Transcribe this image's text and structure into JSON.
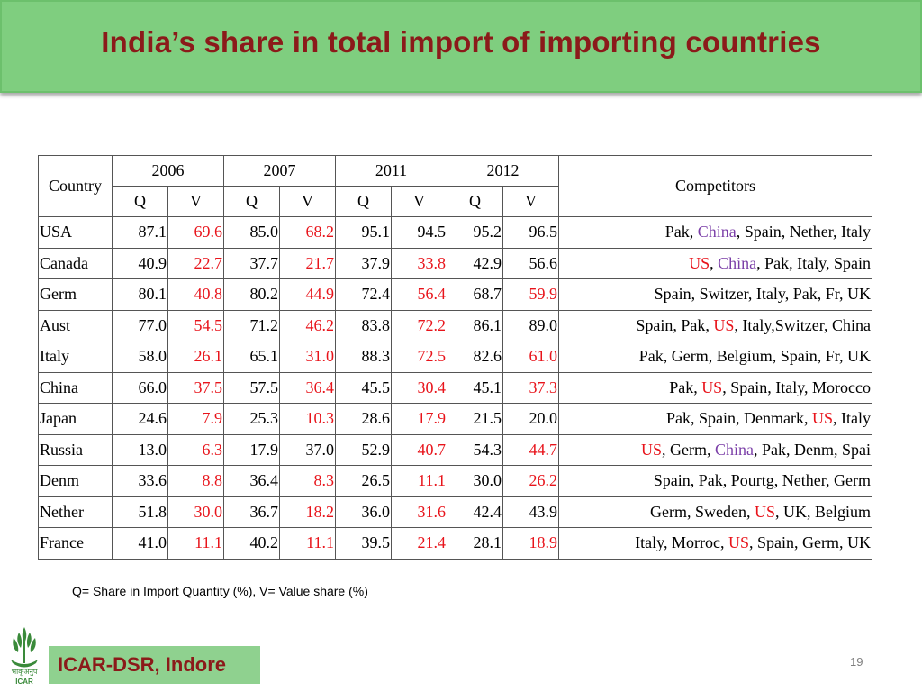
{
  "title": "India’s share in total import of importing countries",
  "table": {
    "country_header": "Country",
    "years": [
      "2006",
      "2007",
      "2011",
      "2012"
    ],
    "sub_headers": [
      "Q",
      "V"
    ],
    "competitors_header": "Competitors",
    "rows": [
      {
        "country": "USA",
        "values": [
          "87.1",
          "69.6",
          "85.0",
          "68.2",
          "95.1",
          "94.5",
          "95.2",
          "96.5"
        ],
        "red": [
          1,
          3
        ],
        "competitors": [
          {
            "t": "Pak, ",
            "c": ""
          },
          {
            "t": "China",
            "c": "purple"
          },
          {
            "t": ", Spain, Nether, Italy",
            "c": ""
          }
        ]
      },
      {
        "country": "Canada",
        "values": [
          "40.9",
          "22.7",
          "37.7",
          "21.7",
          "37.9",
          "33.8",
          "42.9",
          "56.6"
        ],
        "red": [
          1,
          3,
          5
        ],
        "competitors": [
          {
            "t": "US",
            "c": "red"
          },
          {
            "t": ", ",
            "c": ""
          },
          {
            "t": "China",
            "c": "purple"
          },
          {
            "t": ", Pak, Italy, Spain",
            "c": ""
          }
        ]
      },
      {
        "country": "Germ",
        "values": [
          "80.1",
          "40.8",
          "80.2",
          "44.9",
          "72.4",
          "56.4",
          "68.7",
          "59.9"
        ],
        "red": [
          1,
          3,
          5,
          7
        ],
        "competitors": [
          {
            "t": "Spain, Switzer, Italy, Pak, Fr, UK",
            "c": ""
          }
        ]
      },
      {
        "country": "Aust",
        "values": [
          "77.0",
          "54.5",
          "71.2",
          "46.2",
          "83.8",
          "72.2",
          "86.1",
          "89.0"
        ],
        "red": [
          1,
          3,
          5
        ],
        "competitors": [
          {
            "t": "Spain, Pak, ",
            "c": ""
          },
          {
            "t": "US",
            "c": "red"
          },
          {
            "t": ", Italy,Switzer, China",
            "c": ""
          }
        ]
      },
      {
        "country": "Italy",
        "values": [
          "58.0",
          "26.1",
          "65.1",
          "31.0",
          "88.3",
          "72.5",
          "82.6",
          "61.0"
        ],
        "red": [
          1,
          3,
          5,
          7
        ],
        "competitors": [
          {
            "t": "Pak, Germ, Belgium, Spain, Fr, UK",
            "c": ""
          }
        ]
      },
      {
        "country": "China",
        "values": [
          "66.0",
          "37.5",
          "57.5",
          "36.4",
          "45.5",
          "30.4",
          "45.1",
          "37.3"
        ],
        "red": [
          1,
          3,
          5,
          7
        ],
        "competitors": [
          {
            "t": "Pak, ",
            "c": ""
          },
          {
            "t": "US",
            "c": "red"
          },
          {
            "t": ", Spain, Italy, Morocco",
            "c": ""
          }
        ]
      },
      {
        "country": "Japan",
        "values": [
          "24.6",
          "7.9",
          "25.3",
          "10.3",
          "28.6",
          "17.9",
          "21.5",
          "20.0"
        ],
        "red": [
          1,
          3,
          5
        ],
        "competitors": [
          {
            "t": "Pak, Spain, Denmark, ",
            "c": ""
          },
          {
            "t": "US",
            "c": "red"
          },
          {
            "t": ", Italy",
            "c": ""
          }
        ]
      },
      {
        "country": "Russia",
        "values": [
          "13.0",
          "6.3",
          "17.9",
          "37.0",
          "52.9",
          "40.7",
          "54.3",
          "44.7"
        ],
        "red": [
          1,
          5,
          7
        ],
        "competitors": [
          {
            "t": "US",
            "c": "red"
          },
          {
            "t": ", Germ, ",
            "c": ""
          },
          {
            "t": "China",
            "c": "purple"
          },
          {
            "t": ", Pak, Denm, Spai",
            "c": ""
          }
        ]
      },
      {
        "country": "Denm",
        "values": [
          "33.6",
          "8.8",
          "36.4",
          "8.3",
          "26.5",
          "11.1",
          "30.0",
          "26.2"
        ],
        "red": [
          1,
          3,
          5,
          7
        ],
        "competitors": [
          {
            "t": "Spain, Pak, Pourtg, Nether, Germ",
            "c": ""
          }
        ]
      },
      {
        "country": "Nether",
        "values": [
          "51.8",
          "30.0",
          "36.7",
          "18.2",
          "36.0",
          "31.6",
          "42.4",
          "43.9"
        ],
        "red": [
          1,
          3,
          5
        ],
        "competitors": [
          {
            "t": "Germ, Sweden, ",
            "c": ""
          },
          {
            "t": "US",
            "c": "red"
          },
          {
            "t": ", UK, Belgium",
            "c": ""
          }
        ]
      },
      {
        "country": "France",
        "values": [
          "41.0",
          "11.1",
          "40.2",
          "11.1",
          "39.5",
          "21.4",
          "28.1",
          "18.9"
        ],
        "red": [
          1,
          3,
          5,
          7
        ],
        "competitors": [
          {
            "t": "Italy, Morroc, ",
            "c": ""
          },
          {
            "t": "US",
            "c": "red"
          },
          {
            "t": ", Spain, Germ, UK",
            "c": ""
          }
        ]
      }
    ]
  },
  "note": "Q= Share in Import Quantity (%), V= Value share (%)",
  "footer": "ICAR-DSR, Indore",
  "page_number": "19",
  "logo": {
    "text": "ICAR",
    "hindi_text": "भाकृअनुप"
  },
  "colors": {
    "banner": "#7fce7f",
    "title": "#8b1a1a",
    "highlight_red": "#e8141b",
    "highlight_purple": "#7b3fa8",
    "footer_box": "#8fd18f"
  }
}
